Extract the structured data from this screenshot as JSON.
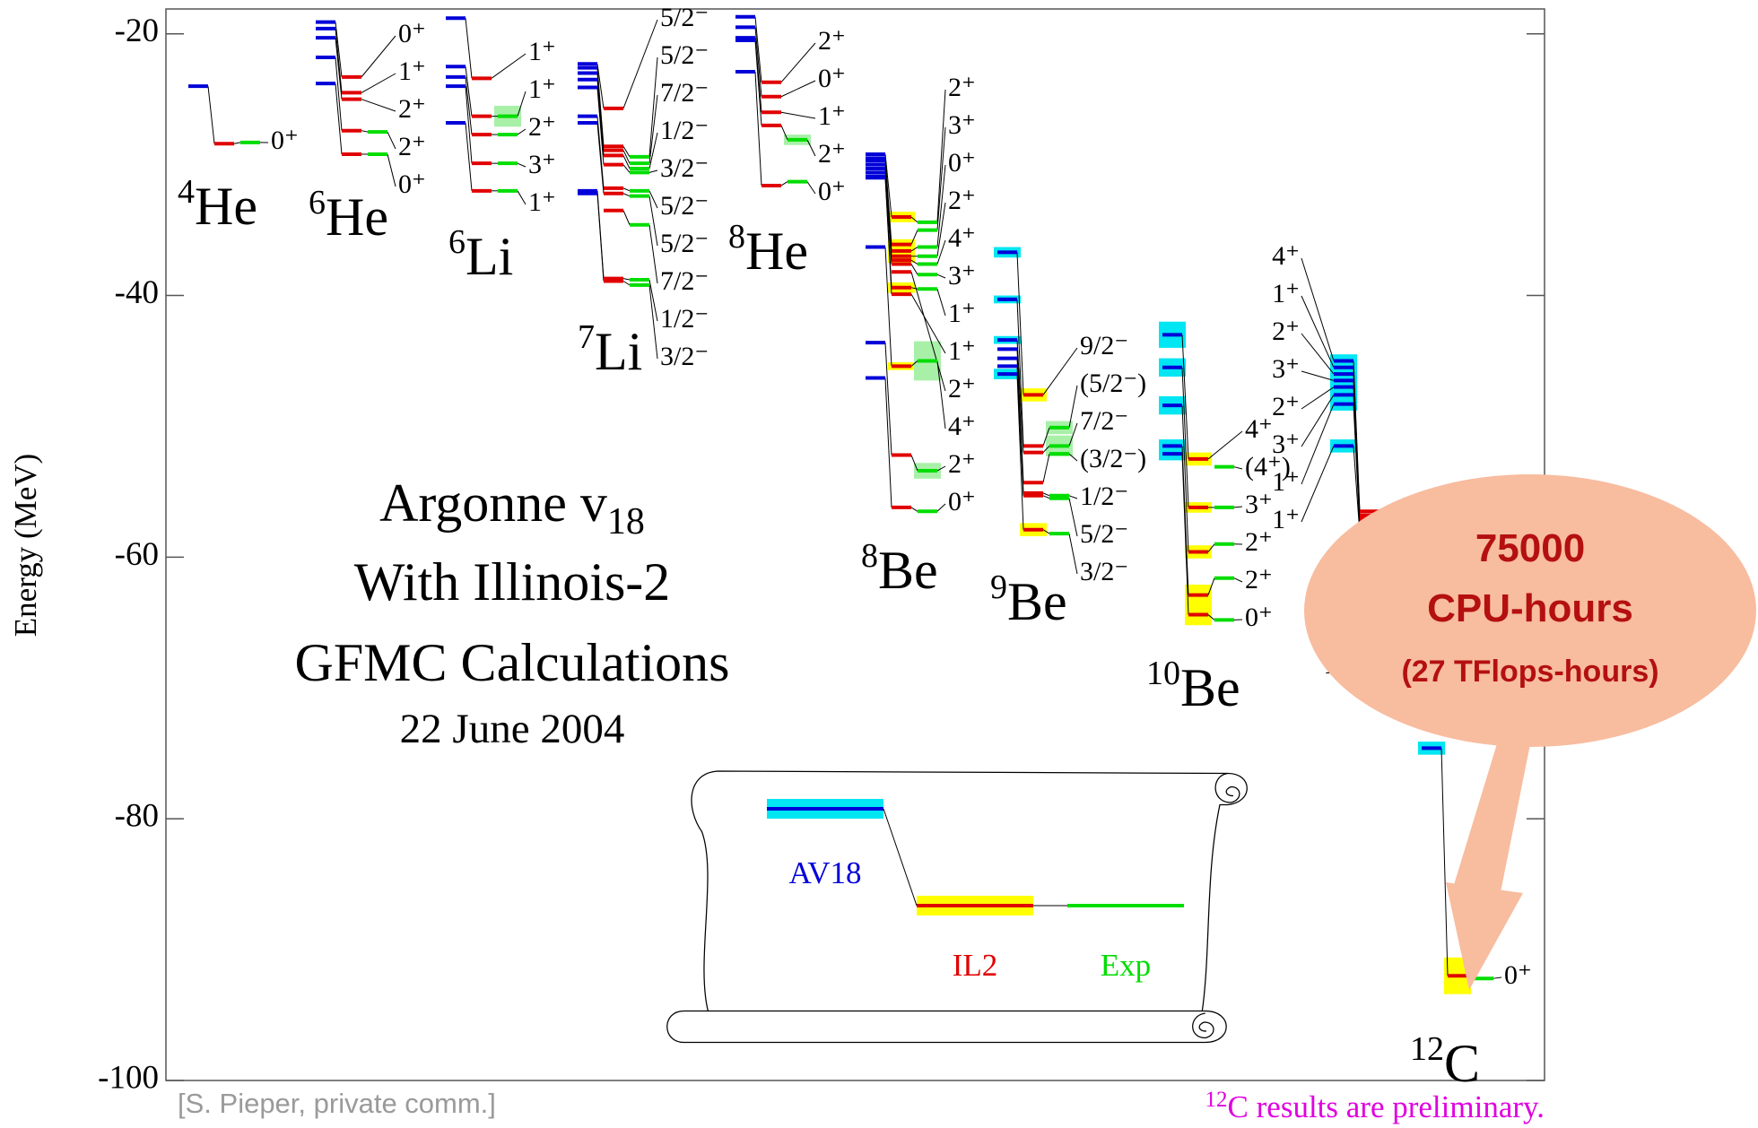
{
  "chart_data": {
    "type": "level-scheme",
    "y_label": "Energy (MeV)",
    "ylim": [
      -100,
      -18.1
    ],
    "yticks": [
      -20,
      -40,
      -60,
      -80,
      -100
    ],
    "series": [
      {
        "name": "AV18",
        "color": "#0000d8",
        "band_color": "#00e6f2"
      },
      {
        "name": "IL2",
        "color": "#e00000",
        "band_color": "#ffff00"
      },
      {
        "name": "Exp",
        "color": "#00dd00",
        "band_color": "#a8f0a8"
      }
    ],
    "nuclei": [
      {
        "mass": "4",
        "symbol": "He",
        "states": [
          {
            "label": "0⁺",
            "values": [
              -24.0,
              -28.4,
              -28.3
            ]
          }
        ]
      },
      {
        "mass": "6",
        "symbol": "He",
        "states": [
          {
            "label": "0⁺",
            "values": [
              -19.1,
              -23.3,
              null
            ]
          },
          {
            "label": "1⁺",
            "values": [
              -19.6,
              -24.5,
              null
            ]
          },
          {
            "label": "2⁺",
            "values": [
              -20.3,
              -25.0,
              null
            ]
          },
          {
            "label": "2⁺",
            "values": [
              -21.8,
              -27.4,
              -27.5
            ]
          },
          {
            "label": "0⁺",
            "values": [
              -23.8,
              -29.2,
              -29.2
            ]
          }
        ]
      },
      {
        "mass": "6",
        "symbol": "Li",
        "states": [
          {
            "label": "1⁺",
            "values": [
              -18.8,
              -23.4,
              null
            ]
          },
          {
            "label": "1⁺",
            "values": [
              -22.5,
              -26.3,
              -26.3
            ],
            "errors": [
              null,
              null,
              0.8
            ]
          },
          {
            "label": "2⁺",
            "values": [
              -23.3,
              -27.7,
              -27.7
            ]
          },
          {
            "label": "3⁺",
            "values": [
              -24.0,
              -29.9,
              -29.9
            ]
          },
          {
            "label": "1⁺",
            "values": [
              -26.8,
              -32.0,
              -32.0
            ]
          }
        ]
      },
      {
        "mass": "7",
        "symbol": "Li",
        "states": [
          {
            "label": "5/2⁻",
            "values": [
              -22.3,
              -25.7,
              null
            ]
          },
          {
            "label": "5/2⁻",
            "values": [
              -22.6,
              -28.6,
              -29.4
            ]
          },
          {
            "label": "7/2⁻",
            "values": [
              -23.0,
              -28.9,
              -29.9
            ]
          },
          {
            "label": "1/2⁻",
            "values": [
              -23.5,
              -29.3,
              -30.3
            ]
          },
          {
            "label": "3/2⁻",
            "values": [
              -24.1,
              -30.0,
              -30.6
            ]
          },
          {
            "label": "5/2⁻",
            "values": [
              -26.3,
              -31.8,
              -32.0
            ]
          },
          {
            "label": "5/2⁻",
            "values": [
              -26.8,
              -32.2,
              -32.4
            ]
          },
          {
            "label": "7/2⁻",
            "values": [
              null,
              -33.5,
              -34.6
            ]
          },
          {
            "label": "1/2⁻",
            "values": [
              -32.0,
              -38.7,
              -38.8
            ]
          },
          {
            "label": "3/2⁻",
            "values": [
              -32.2,
              -38.9,
              -39.2
            ]
          }
        ]
      },
      {
        "mass": "8",
        "symbol": "He",
        "states": [
          {
            "label": "2⁺",
            "values": [
              -18.7,
              -23.7,
              null
            ]
          },
          {
            "label": "0⁺",
            "values": [
              -19.5,
              -24.8,
              null
            ]
          },
          {
            "label": "1⁺",
            "values": [
              -20.3,
              -26.0,
              null
            ]
          },
          {
            "label": "2⁺",
            "values": [
              -20.5,
              -27.0,
              -28.1
            ],
            "errors": [
              null,
              null,
              0.4
            ]
          },
          {
            "label": "0⁺",
            "values": [
              -22.9,
              -31.6,
              -31.3
            ]
          }
        ]
      },
      {
        "mass": "8",
        "symbol": "Be",
        "states": [
          {
            "label": "2⁺",
            "values": [
              -29.2,
              -34.0,
              -34.4
            ],
            "errors": [
              null,
              0.4,
              null
            ]
          },
          {
            "label": "3⁺",
            "values": [
              -29.5,
              -36.1,
              -35.0
            ],
            "errors": [
              null,
              0.4,
              null
            ]
          },
          {
            "label": "0⁺",
            "values": [
              -29.7,
              -36.6,
              -36.3
            ]
          },
          {
            "label": "2⁺",
            "values": [
              -30.0,
              -37.0,
              -37.0
            ],
            "errors": [
              null,
              0.5,
              null
            ]
          },
          {
            "label": "4⁺",
            "values": [
              -30.3,
              -37.3,
              -37.6
            ]
          },
          {
            "label": "3⁺",
            "values": [
              -30.6,
              -37.6,
              -38.4
            ]
          },
          {
            "label": "1⁺",
            "values": [
              -30.9,
              -39.4,
              -39.5
            ],
            "errors": [
              null,
              0.4,
              null
            ]
          },
          {
            "label": "1⁺",
            "values": [
              -31.0,
              -39.9,
              null
            ]
          },
          {
            "label": "2⁺",
            "values": [
              null,
              -38.2,
              null
            ]
          },
          {
            "label": "4⁺",
            "values": [
              -36.3,
              -45.4,
              -45.0
            ],
            "errors": [
              null,
              0.3,
              1.5
            ]
          },
          {
            "label": "2⁺",
            "values": [
              -43.6,
              -52.2,
              -53.4
            ],
            "errors": [
              null,
              null,
              0.6
            ]
          },
          {
            "label": "0⁺",
            "values": [
              -46.3,
              -56.2,
              -56.5
            ]
          }
        ]
      },
      {
        "mass": "9",
        "symbol": "Be",
        "states": [
          {
            "label": "9/2⁻",
            "values": [
              -36.7,
              -47.6,
              null
            ],
            "errors": [
              0.4,
              0.5,
              null
            ]
          },
          {
            "label": "(5/2⁻)",
            "values": [
              -40.3,
              -51.5,
              -50.1
            ],
            "errors": [
              0.3,
              null,
              0.5
            ]
          },
          {
            "label": "7/2⁻",
            "values": [
              -43.4,
              -52.0,
              -51.5
            ],
            "errors": [
              0.3,
              null,
              0.8
            ]
          },
          {
            "label": "(3/2⁻)",
            "values": [
              -44.1,
              -54.3,
              -52.1
            ]
          },
          {
            "label": "1/2⁻",
            "values": [
              -44.8,
              -55.1,
              -55.3
            ]
          },
          {
            "label": "5/2⁻",
            "values": [
              -45.4,
              -55.3,
              -55.5
            ]
          },
          {
            "label": "3/2⁻",
            "values": [
              -46.0,
              -57.9,
              -58.2
            ],
            "errors": [
              0.4,
              0.5,
              null
            ]
          }
        ]
      },
      {
        "mass": "10",
        "symbol": "Be",
        "states": [
          {
            "label": "4⁺",
            "values": [
              -43.0,
              -52.5,
              null
            ],
            "errors": [
              1.0,
              0.5,
              null
            ]
          },
          {
            "label": "(4⁺)",
            "values": [
              null,
              null,
              -53.1
            ]
          },
          {
            "label": "3⁺",
            "values": [
              -45.5,
              -56.2,
              -56.2
            ],
            "errors": [
              0.7,
              0.4,
              null
            ]
          },
          {
            "label": "2⁺",
            "values": [
              -48.4,
              -59.6,
              -59.0
            ],
            "errors": [
              0.7,
              0.5,
              null
            ]
          },
          {
            "label": "2⁺",
            "values": [
              -51.5,
              -62.9,
              -61.6
            ],
            "errors": [
              0.5,
              0.8,
              null
            ]
          },
          {
            "label": "0⁺",
            "values": [
              -52.1,
              -64.4,
              -64.8
            ],
            "errors": [
              0.5,
              0.8,
              null
            ]
          }
        ]
      },
      {
        "mass": "10",
        "symbol": "B",
        "label_side": "left",
        "states": [
          {
            "label": "4⁺",
            "values": [
              -45.0,
              -56.5,
              null
            ],
            "errors": [
              0.5,
              null,
              null
            ]
          },
          {
            "label": "1⁺",
            "values": [
              -45.5,
              -56.8,
              null
            ],
            "errors": [
              0.5,
              null,
              null
            ]
          },
          {
            "label": "2⁺",
            "values": [
              -46.0,
              -57.0,
              null
            ],
            "errors": [
              0.5,
              null,
              null
            ]
          },
          {
            "label": "3⁺",
            "values": [
              -46.5,
              -57.2,
              null
            ],
            "errors": [
              0.5,
              null,
              null
            ]
          },
          {
            "label": "2⁺",
            "values": [
              -47.0,
              -57.4,
              null
            ],
            "errors": [
              0.5,
              null,
              null
            ]
          },
          {
            "label": "3⁺",
            "values": [
              -47.6,
              -57.6,
              null
            ],
            "errors": [
              0.5,
              null,
              null
            ]
          },
          {
            "label": "1⁺",
            "values": [
              -48.3,
              -57.8,
              null
            ],
            "errors": [
              0.5,
              null,
              null
            ]
          },
          {
            "label": "1⁺",
            "values": [
              -51.5,
              -58.2,
              null
            ],
            "errors": [
              0.5,
              null,
              null
            ]
          }
        ]
      },
      {
        "mass": "12",
        "symbol": "C",
        "states": [
          {
            "label": "0⁺",
            "values": [
              -74.6,
              -92.0,
              -92.2
            ],
            "errors": [
              0.5,
              1.4,
              null
            ]
          }
        ]
      }
    ],
    "annotation": {
      "title": "Argonne v",
      "title_subscript": "18",
      "lines": [
        "With Illinois-2",
        "GFMC Calculations"
      ],
      "date": "22 June 2004"
    },
    "source": "[S. Pieper, private comm.]",
    "note": {
      "superscript": "12",
      "text": "C results are preliminary."
    },
    "callout": [
      "75000",
      "CPU-hours",
      "(27 TFlops-hours)"
    ]
  }
}
